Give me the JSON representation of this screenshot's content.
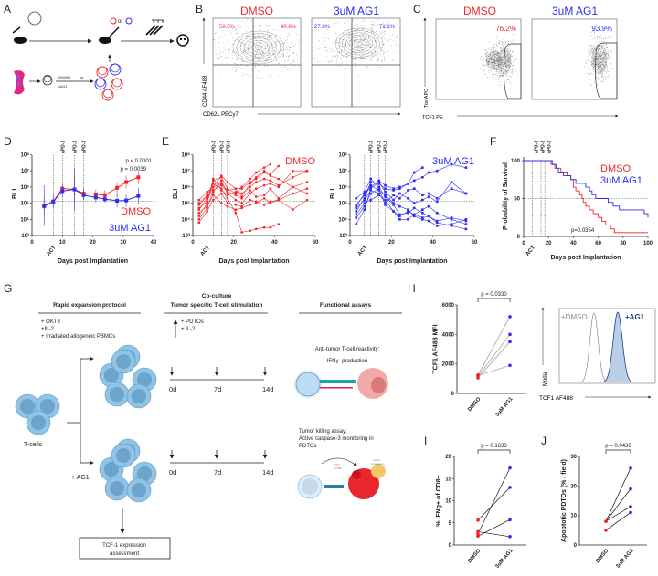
{
  "colors": {
    "dmso": "#f0262b",
    "ag1": "#2b2ef0",
    "cell": "#8fc4e8",
    "cell_dark": "#5d97bf"
  },
  "panel_labels": [
    "A",
    "B",
    "C",
    "D",
    "E",
    "F",
    "G",
    "H",
    "I",
    "J"
  ],
  "panel_a": {
    "treat_dmso": "•DMSO",
    "treat_or": "or",
    "treat_ag1": "•AG1",
    "cells_or": "or"
  },
  "panel_b": {
    "title_dmso": "DMSO",
    "title_ag1": "3uM AG1",
    "dmso_left": "58.5%",
    "dmso_right": "40.8%",
    "ag1_left": "27.8%",
    "ag1_right": "71.1%",
    "ylabel": "CD44 AF488",
    "xlabel": "CD62L PECy7"
  },
  "panel_c": {
    "title_dmso": "DMSO",
    "title_ag1": "3uM AG1",
    "dmso_pct": "76.2%",
    "ag1_pct": "93.9%",
    "ylabel": "Tox APC",
    "xlabel": "TCF1 PE"
  },
  "panel_g": {
    "h1": "Rapid expansion protocol",
    "h2a": "Co-culture",
    "h2b": "Tumor specific T-cell stimulation",
    "h3": "Functional assays",
    "rep1": "+ OKT3",
    "rep2": "+IL-2",
    "rep3": "+ Irradiated allogeneic PBMCs",
    "cc1": "+ PDTOs",
    "cc2": "+ IL-2",
    "days": [
      "0d",
      "7d",
      "14d"
    ],
    "fa1a": "Anti-tumor T-cell reactivity:",
    "fa1b": "IFNγ- production",
    "fa2a": "Tumor killing assay:",
    "fa2b": "Active caspase-3 monitoring in",
    "fa2c": "PDTOs",
    "pfn": "PFN",
    "gzmb": "GzmB",
    "casp_a": "Active",
    "casp_b": "Caspase-3",
    "tcells": "T-cells",
    "ag1": "+ AG1",
    "box1": "TCF-1 expression",
    "box2": "assessment"
  },
  "panel_h_hist": {
    "legend_dmso": "+DMSO",
    "legend_ag1": "+AG1",
    "ylabel": "Modal",
    "xlabel": "TCF1 AF488"
  },
  "chart_data": [
    {
      "panel": "D",
      "type": "line",
      "ylabel": "BLI",
      "xlabel": "Days post Implantation",
      "yscale": "log",
      "ylim": [
        1000,
        100000000
      ],
      "xlim": [
        0,
        40
      ],
      "xticks": [
        0,
        10,
        20,
        30,
        40
      ],
      "yticks": [
        "10³",
        "10⁴",
        "10⁵",
        "10⁶",
        "10⁷",
        "10⁸"
      ],
      "vlines": [
        7,
        10,
        14,
        17
      ],
      "vline_labels": [
        "ACT",
        "aPD-1",
        "aPD-1",
        "aPD-1"
      ],
      "hline_log10": 5.12,
      "annotations": [
        "p < 0.0001",
        "p = 0.0039"
      ],
      "series": [
        {
          "name": "DMSO",
          "x": [
            4,
            7,
            10,
            14,
            17,
            21,
            24,
            28,
            31,
            35
          ],
          "log10_y": [
            4.8,
            5.1,
            5.9,
            5.85,
            5.6,
            5.55,
            5.5,
            5.95,
            6.3,
            6.6
          ],
          "err": [
            0.6,
            0.3,
            0.3,
            0.8,
            0.35,
            0.3,
            0.3,
            0.35,
            0.4,
            0.4
          ]
        },
        {
          "name": "3uM AG1",
          "x": [
            4,
            7,
            10,
            14,
            17,
            21,
            24,
            28,
            31,
            35
          ],
          "log10_y": [
            4.85,
            5.1,
            5.75,
            5.85,
            5.5,
            5.35,
            5.25,
            5.15,
            5.17,
            5.45
          ],
          "err": [
            1.25,
            0.4,
            0.4,
            1.3,
            0.3,
            0.3,
            0.2,
            0.4,
            0.4,
            0.5
          ]
        }
      ]
    },
    {
      "panel": "E-DMSO",
      "type": "line",
      "title": "DMSO",
      "ylabel": "BLI",
      "xlabel": "Days post Implantation",
      "yscale": "log",
      "xlim": [
        0,
        60
      ],
      "xticks": [
        0,
        20,
        40,
        60
      ],
      "vlines": [
        7,
        10,
        14,
        17
      ],
      "hline_log10": 5.12,
      "x": [
        3,
        7,
        10,
        14,
        17,
        21,
        24,
        28,
        31,
        35,
        38,
        42,
        49,
        56
      ],
      "traces_log10": [
        [
          4.2,
          5.0,
          6.4,
          6.6,
          5.9,
          5.6,
          6.0,
          6.5,
          6.9,
          7.2,
          7.4
        ],
        [
          4.6,
          5.3,
          6.0,
          6.2,
          5.8,
          5.9,
          5.4,
          6.2,
          6.6,
          7.0,
          6.8,
          7.3
        ],
        [
          4.9,
          5.4,
          5.7,
          6.4,
          5.6,
          5.2,
          5.0,
          5.6,
          5.9,
          6.1,
          6.2,
          6.0,
          7.0,
          7.0
        ],
        [
          5.0,
          5.5,
          6.2,
          5.9,
          5.3,
          4.4,
          3.2,
          3.3,
          3.4,
          3.5,
          3.5,
          3.7
        ],
        [
          4.4,
          4.8,
          5.5,
          5.0,
          4.8,
          4.6,
          4.7,
          4.9,
          5.0,
          5.3,
          5.0,
          5.2,
          5.6,
          5.9
        ],
        [
          5.2,
          5.7,
          6.0,
          6.7,
          6.3,
          5.9,
          5.9,
          6.3,
          6.5,
          6.9,
          6.7,
          6.5,
          6.0,
          6.3
        ],
        [
          3.8,
          4.5,
          5.2,
          5.6,
          5.0,
          4.9,
          4.8,
          5.2,
          5.1,
          4.9,
          5.1,
          5.2,
          4.6,
          5.2
        ],
        [
          4.0,
          4.7,
          5.8,
          6.1,
          5.7,
          5.5,
          5.3,
          5.8,
          5.4,
          5.5,
          5.9,
          5.3,
          6.0,
          5.6
        ],
        [
          4.7,
          5.1,
          6.5,
          5.8,
          5.5,
          5.7,
          5.6,
          6.0,
          6.3,
          6.5,
          6.4,
          6.1,
          6.6,
          7.0
        ]
      ]
    },
    {
      "panel": "E-AG1",
      "type": "line",
      "title": "3uM AG1",
      "ylabel": "BLI",
      "xlabel": "Days post Implantation",
      "yscale": "log",
      "xlim": [
        0,
        60
      ],
      "xticks": [
        0,
        20,
        40,
        60
      ],
      "vlines": [
        7,
        10,
        14,
        17
      ],
      "hline_log10": 5.12,
      "x": [
        3,
        7,
        10,
        14,
        17,
        21,
        24,
        28,
        31,
        35,
        38,
        42,
        49,
        56
      ],
      "traces_log10": [
        [
          4.5,
          5.3,
          6.3,
          6.2,
          5.9,
          5.8,
          5.9,
          6.2,
          6.9,
          7.2
        ],
        [
          4.9,
          5.5,
          6.0,
          6.4,
          6.1,
          5.9,
          6.0,
          6.2,
          6.4,
          6.6,
          6.9,
          7.0,
          7.4,
          7.2
        ],
        [
          4.1,
          4.8,
          5.6,
          5.9,
          4.9,
          4.5,
          4.2,
          4.5,
          4.3,
          4.1,
          4.2,
          3.8,
          3.6,
          3.4
        ],
        [
          4.7,
          5.2,
          5.8,
          5.6,
          5.0,
          5.5,
          5.3,
          5.8,
          5.9,
          5.5,
          5.6,
          5.3,
          5.9,
          5.6
        ],
        [
          5.3,
          5.7,
          6.5,
          6.0,
          5.4,
          4.9,
          4.3,
          4.4,
          4.7,
          4.4,
          4.2,
          3.9,
          4.1,
          3.9
        ],
        [
          4.3,
          5.0,
          5.2,
          5.5,
          5.2,
          4.5,
          4.0,
          4.0,
          4.3,
          4.6,
          4.8,
          4.4,
          4.0,
          3.7
        ],
        [
          3.7,
          4.6,
          5.9,
          6.3,
          5.7,
          5.2,
          5.6,
          5.3,
          5.0,
          5.2,
          5.4,
          5.1,
          6.3,
          5.6
        ],
        [
          4.8,
          5.6,
          6.1,
          5.8,
          5.5,
          5.0,
          4.8,
          4.6,
          4.2,
          4.0,
          3.9,
          3.6,
          3.7,
          4.0
        ]
      ]
    },
    {
      "panel": "F",
      "type": "line",
      "ylabel": "Probability of Survival",
      "xlabel": "Days post Implantation",
      "xlim": [
        0,
        100
      ],
      "ylim": [
        0,
        100
      ],
      "xticks": [
        0,
        20,
        40,
        60,
        80,
        100
      ],
      "yticks": [
        0,
        50,
        100
      ],
      "vlines": [
        7,
        10,
        14,
        17
      ],
      "hline": 50,
      "annotation": "p=0.0354",
      "legend": [
        "DMSO",
        "3uM AG1"
      ],
      "series": [
        {
          "name": "DMSO",
          "steps": [
            [
              0,
              100
            ],
            [
              20,
              100
            ],
            [
              22,
              95
            ],
            [
              25,
              90
            ],
            [
              30,
              85
            ],
            [
              35,
              80
            ],
            [
              38,
              75
            ],
            [
              40,
              65
            ],
            [
              42,
              60
            ],
            [
              45,
              55
            ],
            [
              47,
              50
            ],
            [
              48,
              45
            ],
            [
              50,
              40
            ],
            [
              53,
              35
            ],
            [
              56,
              30
            ],
            [
              60,
              25
            ],
            [
              63,
              20
            ],
            [
              66,
              15
            ],
            [
              70,
              10
            ],
            [
              73,
              5
            ],
            [
              100,
              5
            ]
          ]
        },
        {
          "name": "3uM AG1",
          "steps": [
            [
              0,
              100
            ],
            [
              20,
              100
            ],
            [
              23,
              95
            ],
            [
              26,
              90
            ],
            [
              28,
              85
            ],
            [
              32,
              80
            ],
            [
              38,
              75
            ],
            [
              42,
              70
            ],
            [
              50,
              65
            ],
            [
              53,
              60
            ],
            [
              55,
              55
            ],
            [
              58,
              50
            ],
            [
              68,
              45
            ],
            [
              72,
              40
            ],
            [
              77,
              35
            ],
            [
              97,
              30
            ],
            [
              100,
              25
            ]
          ]
        }
      ]
    },
    {
      "panel": "H",
      "type": "scatter",
      "ylabel": "TCF1 AF488 MFI",
      "categories": [
        "DMSO",
        "3uM AG1"
      ],
      "ylim": [
        0,
        6000
      ],
      "yticks": [
        0,
        2000,
        4000,
        6000
      ],
      "annotation": "p = 0.0330",
      "pairs": [
        [
          1250,
          5200
        ],
        [
          1150,
          4000
        ],
        [
          1050,
          3500
        ],
        [
          1200,
          1900
        ]
      ]
    },
    {
      "panel": "I",
      "type": "scatter",
      "ylabel": "% IFNg+ of CD8+",
      "categories": [
        "DMSO",
        "3uM AG1"
      ],
      "ylim": [
        0,
        20
      ],
      "yticks": [
        0,
        5,
        10,
        15,
        20
      ],
      "annotation": "p = 0.1633",
      "pairs": [
        [
          2.5,
          17.4
        ],
        [
          5.6,
          13
        ],
        [
          2.0,
          5.7
        ],
        [
          3.0,
          1.9
        ]
      ]
    },
    {
      "panel": "J",
      "type": "scatter",
      "ylabel": "Apoptotic PDTOs (% / field)",
      "categories": [
        "DMSO",
        "3uM AG1"
      ],
      "ylim": [
        0,
        30
      ],
      "yticks": [
        0,
        10,
        20,
        30
      ],
      "annotation": "p = 0.0436",
      "pairs": [
        [
          8,
          26
        ],
        [
          8,
          19
        ],
        [
          8,
          13
        ],
        [
          5,
          11
        ]
      ]
    }
  ]
}
